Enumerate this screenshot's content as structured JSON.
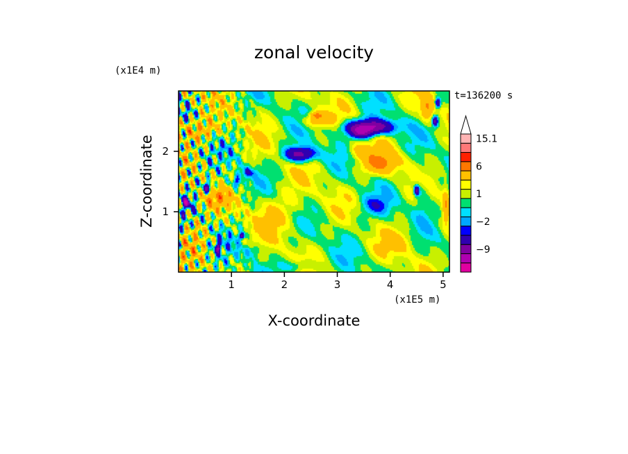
{
  "chart_data": {
    "type": "heatmap",
    "title": "zonal velocity",
    "xlabel": "X-coordinate",
    "ylabel": "Z-coordinate",
    "x_unit": "(x1E5 m)",
    "y_unit": "(x1E4 m)",
    "time_label": "t=136200 s",
    "xlim": [
      0,
      5.12
    ],
    "ylim": [
      0,
      3.0
    ],
    "x_ticks": [
      {
        "v": 1,
        "label": "1"
      },
      {
        "v": 2,
        "label": "2"
      },
      {
        "v": 3,
        "label": "3"
      },
      {
        "v": 4,
        "label": "4"
      },
      {
        "v": 5,
        "label": "5"
      }
    ],
    "y_ticks": [
      {
        "v": 1,
        "label": "1"
      },
      {
        "v": 2,
        "label": "2"
      }
    ],
    "colorbar": {
      "levels": [
        -15,
        -12,
        -9,
        -6,
        -3,
        -2,
        -1,
        0,
        1,
        2,
        3,
        6,
        9,
        12,
        15.1
      ],
      "colors": [
        "#e000a0",
        "#b000b0",
        "#8000a0",
        "#3000b0",
        "#0000ff",
        "#00a8ff",
        "#00e0ff",
        "#00e070",
        "#c8f000",
        "#ffff00",
        "#ffc000",
        "#ff7800",
        "#ff2000",
        "#ff7878",
        "#ffb4b4"
      ],
      "labels": [
        {
          "v": 15.1,
          "label": "15.1"
        },
        {
          "v": 6,
          "label": "6"
        },
        {
          "v": 1,
          "label": "1"
        },
        {
          "v": -2,
          "label": "−2"
        },
        {
          "v": -9,
          "label": "−9"
        }
      ],
      "extend_max": true
    },
    "features": [
      {
        "x": 3.6,
        "z": 2.4,
        "sx": 0.45,
        "sz": 0.12,
        "v": -11
      },
      {
        "x": 3.45,
        "z": 2.3,
        "sx": 0.22,
        "sz": 0.09,
        "v": -6
      },
      {
        "x": 2.3,
        "z": 1.95,
        "sx": 0.28,
        "sz": 0.12,
        "v": -9
      },
      {
        "x": 2.6,
        "z": 2.5,
        "sx": 0.25,
        "sz": 0.1,
        "v": 4
      },
      {
        "x": 2.6,
        "z": 2.6,
        "sx": 0.12,
        "sz": 0.06,
        "v": 5
      },
      {
        "x": 3.8,
        "z": 1.8,
        "sx": 0.35,
        "sz": 0.18,
        "v": 5
      },
      {
        "x": 3.4,
        "z": 2.0,
        "sx": 0.2,
        "sz": 0.12,
        "v": 3
      },
      {
        "x": 0.35,
        "z": 2.35,
        "sx": 0.4,
        "sz": 0.18,
        "v": 4
      },
      {
        "x": 0.7,
        "z": 1.2,
        "sx": 0.25,
        "sz": 0.15,
        "v": 4
      },
      {
        "x": 0.15,
        "z": 1.15,
        "sx": 0.08,
        "sz": 0.08,
        "v": -8
      },
      {
        "x": 0.55,
        "z": 1.4,
        "sx": 0.08,
        "sz": 0.08,
        "v": -7
      },
      {
        "x": 1.1,
        "z": 1.5,
        "sx": 0.1,
        "sz": 0.1,
        "v": -4
      },
      {
        "x": 1.3,
        "z": 1.65,
        "sx": 0.15,
        "sz": 0.08,
        "v": -3
      },
      {
        "x": 3.7,
        "z": 1.1,
        "sx": 0.3,
        "sz": 0.15,
        "v": -2.5
      },
      {
        "x": 3.4,
        "z": 0.8,
        "sx": 0.45,
        "sz": 0.3,
        "v": -0.5
      },
      {
        "x": 4.6,
        "z": 1.3,
        "sx": 0.15,
        "sz": 0.4,
        "v": -2
      },
      {
        "x": 4.5,
        "z": 1.35,
        "sx": 0.05,
        "sz": 0.08,
        "v": -8
      },
      {
        "x": 4.7,
        "z": 2.7,
        "sx": 0.12,
        "sz": 0.2,
        "v": 5
      },
      {
        "x": 4.85,
        "z": 2.5,
        "sx": 0.05,
        "sz": 0.08,
        "v": -8
      },
      {
        "x": 4.9,
        "z": 2.8,
        "sx": 0.05,
        "sz": 0.08,
        "v": -8
      },
      {
        "x": 1.9,
        "z": 1.0,
        "sx": 0.5,
        "sz": 0.35,
        "v": 2
      },
      {
        "x": 0.3,
        "z": 0.6,
        "sx": 0.25,
        "sz": 0.3,
        "v": 2.5
      },
      {
        "x": 0.75,
        "z": 0.4,
        "sx": 0.05,
        "sz": 0.08,
        "v": -8
      },
      {
        "x": 1.2,
        "z": 0.6,
        "sx": 0.05,
        "sz": 0.05,
        "v": -8
      },
      {
        "x": 1.4,
        "z": 0.35,
        "sx": 0.15,
        "sz": 0.1,
        "v": -2.5
      },
      {
        "x": 2.3,
        "z": 0.1,
        "sx": 0.3,
        "sz": 0.1,
        "v": -2.5
      },
      {
        "x": 1.5,
        "z": 2.7,
        "sx": 0.3,
        "sz": 0.15,
        "v": 0.5
      },
      {
        "x": 0.5,
        "z": 1.9,
        "sx": 0.15,
        "sz": 0.2,
        "v": 0
      },
      {
        "x": 0.4,
        "z": 2.9,
        "sx": 0.3,
        "sz": 0.1,
        "v": 1
      },
      {
        "x": 4.2,
        "z": 0.5,
        "sx": 0.3,
        "sz": 0.2,
        "v": 2
      },
      {
        "x": 5.05,
        "z": 1.1,
        "sx": 0.06,
        "sz": 0.3,
        "v": 4
      }
    ]
  }
}
